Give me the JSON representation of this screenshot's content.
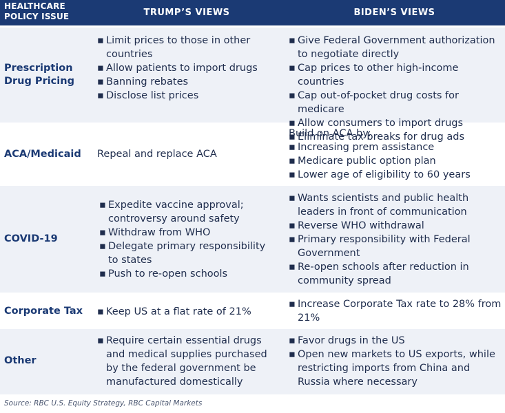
{
  "header": {
    "col1": "HEALTHCARE POLICY ISSUE",
    "col2": "TRUMP’S VIEWS",
    "col3": "BIDEN’S VIEWS"
  },
  "bullet": "▪",
  "rows": [
    {
      "issue": "Prescription Drug Pricing",
      "trump": [
        "Limit prices to those in other countries",
        "Allow patients to import drugs",
        "Banning rebates",
        "Disclose list prices"
      ],
      "biden": [
        "Give Federal Government authorization to negotiate directly",
        "Cap prices to other high-income countries",
        "Cap out-of-pocket drug costs for medicare",
        "Allow consumers to import drugs",
        "Eliminate tax breaks for drug ads"
      ]
    },
    {
      "issue": "ACA/Medicaid",
      "trump_text": "Repeal and replace ACA",
      "biden_intro": "Build on ACA by:",
      "biden": [
        "Increasing prem assistance",
        "Medicare public option plan",
        "Lower age of eligibility to 60 years"
      ]
    },
    {
      "issue": "COVID-19",
      "trump": [
        "Expedite vaccine approval; controversy around safety",
        "Withdraw from WHO",
        "Delegate primary responsibility to states",
        "Push to re-open schools"
      ],
      "biden": [
        "Wants scientists and public health leaders in front of communication",
        "Reverse WHO withdrawal",
        "Primary responsibility with Federal Government",
        "Re-open schools after reduction in community spread"
      ]
    },
    {
      "issue": "Corporate Tax",
      "trump": [
        "Keep US at a flat rate of 21%"
      ],
      "biden": [
        "Increase Corporate Tax rate to 28% from 21%"
      ]
    },
    {
      "issue": "Other",
      "trump": [
        "Require certain essential drugs and medical supplies purchased by the federal government be manufactured domestically"
      ],
      "biden": [
        "Favor drugs in the US",
        "Open new markets to US exports, while restricting imports from China and Russia where necessary"
      ]
    }
  ],
  "source": "Source: RBC U.S. Equity Strategy, RBC Capital Markets",
  "colors": {
    "header_bg": "#1b3a74",
    "row_shade": "#eef1f7",
    "label": "#1b3a74"
  }
}
